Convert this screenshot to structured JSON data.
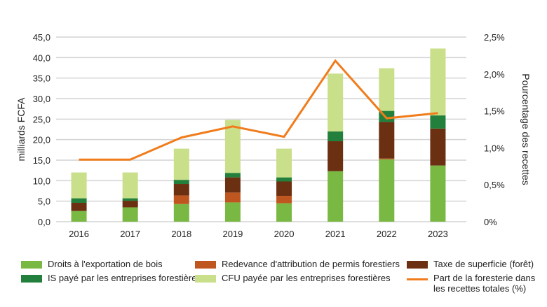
{
  "chart_data": {
    "type": "bar",
    "stacked": true,
    "categories": [
      "2016",
      "2017",
      "2018",
      "2019",
      "2020",
      "2021",
      "2022",
      "2023"
    ],
    "ylabel": "milliards FCFA",
    "y2label": "Pourcentage des recettes",
    "ylim": [
      0,
      45
    ],
    "y2lim": [
      0,
      2.5
    ],
    "yticks": [
      "0,0",
      "5,0",
      "10,0",
      "15,0",
      "20,0",
      "25,0",
      "30,0",
      "35,0",
      "40,0",
      "45,0"
    ],
    "y2ticks": [
      "0%",
      "0,5%",
      "1,0%",
      "1,5%",
      "2,0%",
      "2,5%"
    ],
    "grid": true,
    "legend_position": "bottom",
    "series": [
      {
        "name": "Droits à l'exportation de bois",
        "color": "#7ab844",
        "values": [
          2.6,
          3.5,
          4.3,
          4.7,
          4.5,
          12.3,
          15.2,
          13.7
        ]
      },
      {
        "name": "Redevance d'attribution de permis forestiers",
        "color": "#c0561f",
        "values": [
          0,
          0,
          2.1,
          2.4,
          1.8,
          0,
          0.2,
          0
        ]
      },
      {
        "name": "Taxe de superficie (forêt)",
        "color": "#6b2f12",
        "values": [
          2.0,
          1.6,
          2.8,
          3.7,
          3.5,
          7.3,
          8.9,
          9.0
        ]
      },
      {
        "name": "IS payé par les entreprises forestières",
        "color": "#23803c",
        "values": [
          1.1,
          0.6,
          1.0,
          1.1,
          1.0,
          2.4,
          2.7,
          3.2
        ]
      },
      {
        "name": "CFU payée par les entreprises forestières",
        "color": "#c9df8a",
        "values": [
          6.3,
          6.3,
          7.6,
          12.9,
          7.0,
          14.1,
          10.4,
          16.3
        ]
      }
    ],
    "line": {
      "name": "Part de la foresterie dans les recettes totales (%)",
      "color": "#f07c1c",
      "axis": "right",
      "values": [
        0.84,
        0.84,
        1.14,
        1.29,
        1.15,
        2.18,
        1.4,
        1.47
      ]
    }
  }
}
